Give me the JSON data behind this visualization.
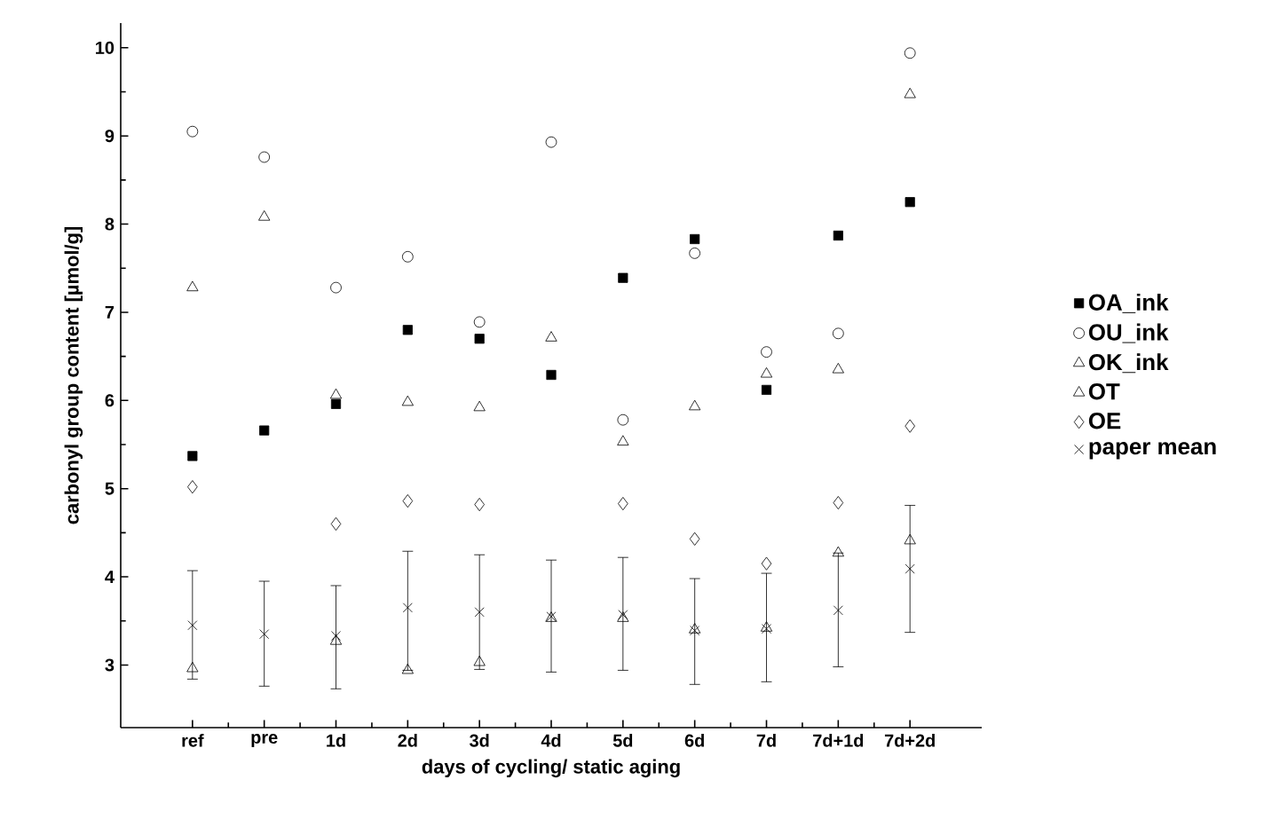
{
  "chart_data": {
    "type": "scatter",
    "xlabel": "days of cycling/ static aging",
    "ylabel": "carbonyl group content [µmol/g]",
    "categories": [
      "ref",
      "pre",
      "1d",
      "2d",
      "3d",
      "4d",
      "5d",
      "6d",
      "7d",
      "7d+1d",
      "7d+2d"
    ],
    "ylim": [
      2.29,
      10.28
    ],
    "yticks": [
      3,
      4,
      5,
      6,
      7,
      8,
      9,
      10
    ],
    "legend": "right",
    "grid": false,
    "series": [
      {
        "name": "OA_ink",
        "color": "#000000",
        "marker": "square",
        "values": [
          5.37,
          5.66,
          5.96,
          6.8,
          6.7,
          6.29,
          7.39,
          7.83,
          6.12,
          7.87,
          8.25
        ]
      },
      {
        "name": "OU_ink",
        "color": "#000000",
        "marker": "circle",
        "values": [
          9.05,
          8.76,
          7.28,
          7.63,
          6.89,
          8.93,
          5.78,
          7.67,
          6.55,
          6.76,
          9.94
        ]
      },
      {
        "name": "OK_ink",
        "color": "#000000",
        "marker": "triangle",
        "values": [
          7.28,
          8.08,
          6.06,
          5.98,
          5.92,
          6.71,
          5.53,
          5.93,
          6.3,
          6.35,
          9.47
        ]
      },
      {
        "name": "OT",
        "color": "#000000",
        "marker": "triangle down",
        "values": [
          2.96,
          null,
          3.27,
          2.94,
          3.03,
          3.53,
          3.53,
          3.4,
          3.42,
          4.27,
          4.41
        ]
      },
      {
        "name": "OE",
        "color": "#000000",
        "marker": "diamond",
        "values": [
          5.02,
          null,
          4.6,
          4.86,
          4.82,
          null,
          4.83,
          4.43,
          4.15,
          4.84,
          5.71
        ]
      },
      {
        "name": "paper mean",
        "color": "#000000",
        "marker": "cross",
        "values": [
          3.45,
          3.35,
          3.33,
          3.65,
          3.6,
          3.55,
          3.57,
          3.39,
          3.41,
          3.62,
          4.09
        ],
        "errors": [
          [
            2.84,
            4.07
          ],
          [
            2.76,
            3.95
          ],
          [
            2.73,
            3.9
          ],
          [
            2.94,
            4.29
          ],
          [
            2.95,
            4.25
          ],
          [
            2.92,
            4.19
          ],
          [
            2.94,
            4.22
          ],
          [
            2.78,
            3.98
          ],
          [
            2.81,
            4.04
          ],
          [
            2.98,
            4.27
          ],
          [
            3.37,
            4.81
          ]
        ]
      }
    ]
  }
}
